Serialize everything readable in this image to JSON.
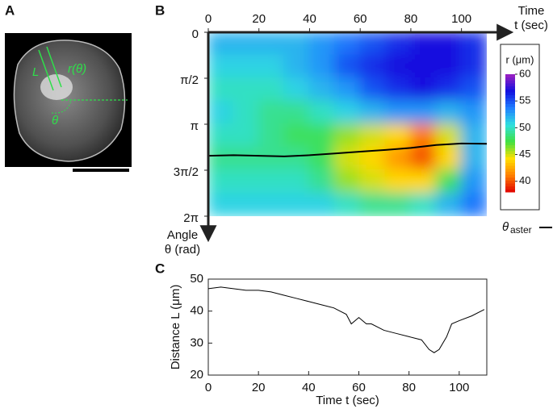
{
  "panels": {
    "A": {
      "label": "A",
      "annotations": [
        "L",
        "r(θ)",
        "θ"
      ]
    },
    "B": {
      "label": "B"
    },
    "C": {
      "label": "C"
    }
  },
  "chart_data": [
    {
      "type": "heatmap",
      "x_label_top": "Time",
      "x_label": "t (sec)",
      "y_label_top": "Angle",
      "y_label": "θ (rad)",
      "colorbar_label": "r (μm)",
      "line_label": "θ",
      "line_label_sub": "aster",
      "xlim": [
        0,
        110
      ],
      "xticks": [
        0,
        20,
        40,
        60,
        80,
        100
      ],
      "ylim": [
        0,
        6.2832
      ],
      "yticks": [
        {
          "value": 0,
          "label": "0"
        },
        {
          "value": 1.5708,
          "label": "π/2"
        },
        {
          "value": 3.1416,
          "label": "π"
        },
        {
          "value": 4.7124,
          "label": "3π/2"
        },
        {
          "value": 6.2832,
          "label": "2π"
        }
      ],
      "x_edges": [
        0,
        10,
        20,
        30,
        40,
        50,
        60,
        70,
        80,
        90,
        100,
        110
      ],
      "y_edges": [
        0,
        0.7854,
        1.5708,
        2.3562,
        3.1416,
        3.927,
        4.7124,
        5.4978,
        6.2832
      ],
      "z": [
        [
          52,
          51,
          50,
          51,
          50,
          49,
          50,
          51
        ],
        [
          52,
          51,
          50,
          50,
          50,
          49,
          50,
          51
        ],
        [
          52,
          51,
          50,
          49,
          49,
          49,
          50,
          51
        ],
        [
          52,
          52,
          51,
          49,
          48,
          49,
          50,
          51
        ],
        [
          53,
          53,
          52,
          50,
          48,
          48,
          49,
          51
        ],
        [
          54,
          55,
          53,
          51,
          46,
          45,
          46,
          50
        ],
        [
          55,
          56,
          55,
          52,
          45,
          44,
          45,
          49
        ],
        [
          56,
          57,
          56,
          53,
          44,
          42,
          44,
          49
        ],
        [
          57,
          57,
          57,
          53,
          41,
          40,
          44,
          50
        ],
        [
          57,
          57,
          56,
          52,
          45,
          44,
          48,
          52
        ],
        [
          56,
          56,
          55,
          53,
          52,
          52,
          53,
          54
        ]
      ],
      "clim": [
        38,
        60
      ],
      "cticks": [
        40,
        45,
        50,
        55,
        60
      ],
      "colorscale": [
        "#e00000",
        "#ff8000",
        "#ffe000",
        "#40e040",
        "#30e0e0",
        "#2080ff",
        "#1010e0",
        "#a020c0"
      ],
      "line": {
        "color": "#000000",
        "x": [
          0,
          10,
          20,
          30,
          40,
          50,
          60,
          70,
          80,
          90,
          100,
          110
        ],
        "values": [
          4.22,
          4.2,
          4.22,
          4.24,
          4.2,
          4.14,
          4.08,
          4.02,
          3.95,
          3.85,
          3.8,
          3.81
        ]
      }
    },
    {
      "type": "line",
      "x_label": "Time t (sec)",
      "y_label": "Distance L (μm)",
      "xlim": [
        0,
        111
      ],
      "xticks": [
        0,
        20,
        40,
        60,
        80,
        100
      ],
      "ylim": [
        20,
        50
      ],
      "yticks": [
        20,
        30,
        40,
        50
      ],
      "series": [
        {
          "color": "#000000",
          "x": [
            0,
            5,
            10,
            15,
            20,
            25,
            30,
            35,
            40,
            45,
            50,
            55,
            57,
            60,
            63,
            65,
            70,
            75,
            80,
            85,
            88,
            90,
            92,
            95,
            97,
            100,
            105,
            110
          ],
          "values": [
            47,
            47.5,
            47,
            46.5,
            46.5,
            46,
            45,
            44,
            43,
            42,
            41,
            39,
            36,
            38,
            36,
            36,
            34,
            33,
            32,
            31,
            28,
            27,
            28,
            32,
            36,
            37,
            38.5,
            40.5
          ]
        }
      ]
    }
  ]
}
